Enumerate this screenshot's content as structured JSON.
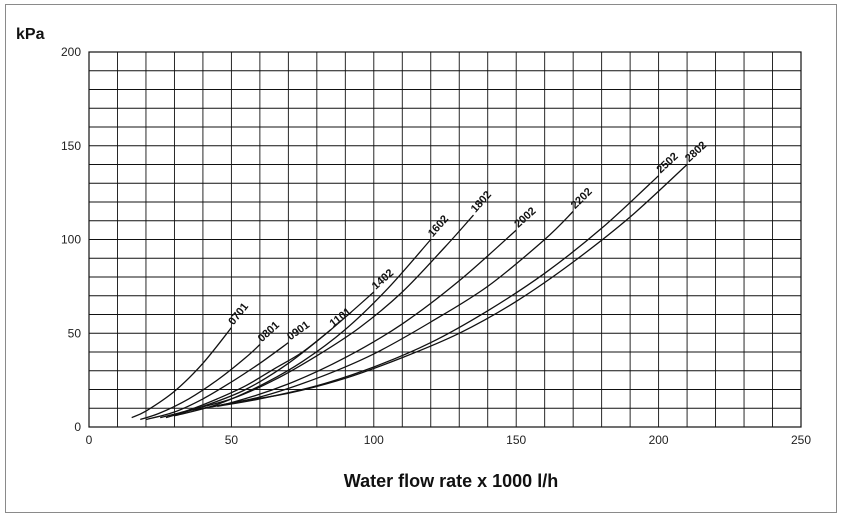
{
  "chart_data": {
    "type": "line",
    "title": "",
    "ylabel": "kPa",
    "xlabel": "Water flow rate x 1000 l/h",
    "xlim": [
      0,
      250
    ],
    "ylim": [
      0,
      200
    ],
    "x_ticks": [
      0,
      50,
      100,
      150,
      200,
      250
    ],
    "y_ticks": [
      0,
      50,
      100,
      150,
      200
    ],
    "grid": true,
    "series": [
      {
        "name": "0701",
        "x": [
          15,
          20,
          30,
          40,
          50
        ],
        "y": [
          5,
          8.5,
          19,
          34,
          53
        ]
      },
      {
        "name": "0801",
        "x": [
          18,
          25,
          35,
          45,
          55,
          60
        ],
        "y": [
          4,
          7.5,
          15,
          25,
          37,
          44
        ]
      },
      {
        "name": "0901",
        "x": [
          20,
          30,
          40,
          50,
          60,
          70
        ],
        "y": [
          4,
          8,
          15,
          24,
          34,
          45
        ]
      },
      {
        "name": "1101",
        "x": [
          25,
          35,
          45,
          55,
          65,
          75,
          85
        ],
        "y": [
          5,
          9,
          15,
          22,
          31,
          40,
          52
        ]
      },
      {
        "name": "1402",
        "x": [
          27,
          40,
          55,
          70,
          85,
          100
        ],
        "y": [
          5,
          11,
          20,
          34,
          52,
          72
        ]
      },
      {
        "name": "1602",
        "x": [
          30,
          45,
          60,
          75,
          90,
          105,
          120
        ],
        "y": [
          6,
          12,
          22,
          35,
          52,
          74,
          100
        ]
      },
      {
        "name": "1802",
        "x": [
          35,
          50,
          65,
          80,
          95,
          110,
          125,
          135
        ],
        "y": [
          9,
          15,
          25,
          38,
          53,
          72,
          96,
          113
        ]
      },
      {
        "name": "2002",
        "x": [
          36,
          50,
          70,
          90,
          110,
          130,
          150
        ],
        "y": [
          9,
          13,
          23,
          37,
          55,
          78,
          105
        ]
      },
      {
        "name": "2202",
        "x": [
          40,
          60,
          80,
          100,
          120,
          140,
          160,
          170
        ],
        "y": [
          10,
          16,
          26,
          39,
          56,
          75,
          100,
          115
        ]
      },
      {
        "name": "2502",
        "x": [
          45,
          60,
          80,
          100,
          120,
          140,
          160,
          180,
          200
        ],
        "y": [
          11,
          15,
          22,
          32,
          45,
          62,
          82,
          106,
          134
        ]
      },
      {
        "name": "2802",
        "x": [
          50,
          70,
          90,
          110,
          130,
          150,
          170,
          190,
          210
        ],
        "y": [
          13,
          18,
          26,
          37,
          50,
          67,
          88,
          112,
          140
        ]
      }
    ]
  }
}
